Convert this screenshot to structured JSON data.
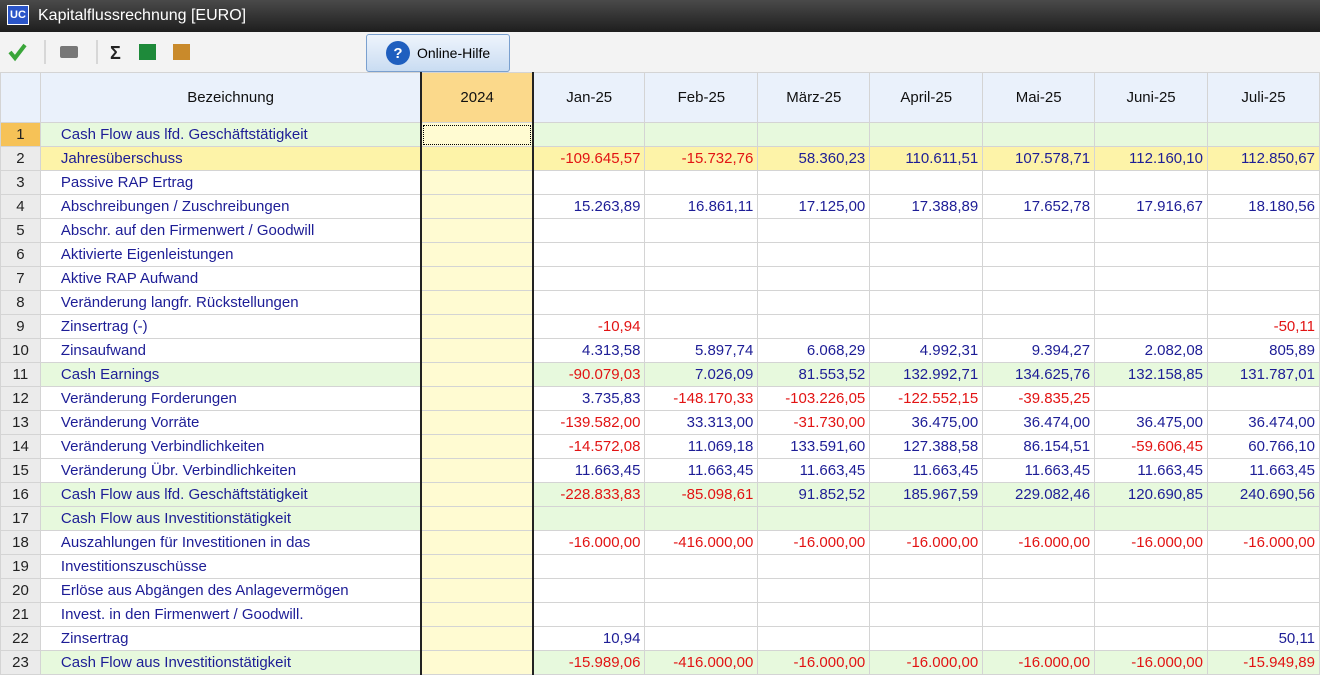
{
  "window": {
    "app_icon": "UC",
    "title": "Kapitalflussrechnung  [EURO]"
  },
  "toolbar": {
    "help_button": "Online-Hilfe"
  },
  "table": {
    "columns": [
      "Bezeichnung",
      "2024",
      "Jan-25",
      "Feb-25",
      "März-25",
      "April-25",
      "Mai-25",
      "Juni-25",
      "Juli-25"
    ],
    "rows": [
      {
        "num": "1",
        "label": "Cash Flow aus lfd. Geschäftstätigkeit",
        "fill": "#e7f9dd",
        "cells": [
          null,
          null,
          null,
          null,
          null,
          null,
          null,
          null
        ]
      },
      {
        "num": "2",
        "label": "Jahresüberschuss",
        "fill": "#fdf3a8",
        "cells": [
          null,
          "-109.645,57",
          "-15.732,76",
          "58.360,23",
          "110.611,51",
          "107.578,71",
          "112.160,10",
          "112.850,67"
        ]
      },
      {
        "num": "3",
        "label": "Passive RAP Ertrag",
        "cells": [
          null,
          null,
          null,
          null,
          null,
          null,
          null,
          null
        ]
      },
      {
        "num": "4",
        "label": "Abschreibungen / Zuschreibungen",
        "cells": [
          null,
          "15.263,89",
          "16.861,11",
          "17.125,00",
          "17.388,89",
          "17.652,78",
          "17.916,67",
          "18.180,56"
        ]
      },
      {
        "num": "5",
        "label": "Abschr. auf den Firmenwert / Goodwill",
        "cells": [
          null,
          null,
          null,
          null,
          null,
          null,
          null,
          null
        ]
      },
      {
        "num": "6",
        "label": "Aktivierte Eigenleistungen",
        "cells": [
          null,
          null,
          null,
          null,
          null,
          null,
          null,
          null
        ]
      },
      {
        "num": "7",
        "label": "Aktive RAP Aufwand",
        "cells": [
          null,
          null,
          null,
          null,
          null,
          null,
          null,
          null
        ]
      },
      {
        "num": "8",
        "label": "Veränderung langfr. Rückstellungen",
        "cells": [
          null,
          null,
          null,
          null,
          null,
          null,
          null,
          null
        ]
      },
      {
        "num": "9",
        "label": "Zinsertrag (-)",
        "cells": [
          null,
          "-10,94",
          null,
          null,
          null,
          null,
          null,
          "-50,11"
        ]
      },
      {
        "num": "10",
        "label": "Zinsaufwand",
        "cells": [
          null,
          "4.313,58",
          "5.897,74",
          "6.068,29",
          "4.992,31",
          "9.394,27",
          "2.082,08",
          "805,89"
        ]
      },
      {
        "num": "11",
        "label": "Cash Earnings",
        "fill": "#e7f9dd",
        "cells": [
          null,
          "-90.079,03",
          "7.026,09",
          "81.553,52",
          "132.992,71",
          "134.625,76",
          "132.158,85",
          "131.787,01"
        ]
      },
      {
        "num": "12",
        "label": "Veränderung Forderungen",
        "cells": [
          null,
          "3.735,83",
          "-148.170,33",
          "-103.226,05",
          "-122.552,15",
          "-39.835,25",
          null,
          null
        ]
      },
      {
        "num": "13",
        "label": "Veränderung Vorräte",
        "cells": [
          null,
          "-139.582,00",
          "33.313,00",
          "-31.730,00",
          "36.475,00",
          "36.474,00",
          "36.475,00",
          "36.474,00"
        ]
      },
      {
        "num": "14",
        "label": "Veränderung Verbindlichkeiten",
        "cells": [
          null,
          "-14.572,08",
          "11.069,18",
          "133.591,60",
          "127.388,58",
          "86.154,51",
          "-59.606,45",
          "60.766,10"
        ]
      },
      {
        "num": "15",
        "label": "Veränderung Übr. Verbindlichkeiten",
        "cells": [
          null,
          "11.663,45",
          "11.663,45",
          "11.663,45",
          "11.663,45",
          "11.663,45",
          "11.663,45",
          "11.663,45"
        ]
      },
      {
        "num": "16",
        "label": "Cash Flow aus lfd. Geschäftstätigkeit",
        "fill": "#e7f9dd",
        "cells": [
          null,
          "-228.833,83",
          "-85.098,61",
          "91.852,52",
          "185.967,59",
          "229.082,46",
          "120.690,85",
          "240.690,56"
        ]
      },
      {
        "num": "17",
        "label": "Cash Flow aus Investitionstätigkeit",
        "fill": "#e7f9dd",
        "cells": [
          null,
          null,
          null,
          null,
          null,
          null,
          null,
          null
        ]
      },
      {
        "num": "18",
        "label": "Auszahlungen für Investitionen in das",
        "cells": [
          null,
          "-16.000,00",
          "-416.000,00",
          "-16.000,00",
          "-16.000,00",
          "-16.000,00",
          "-16.000,00",
          "-16.000,00"
        ]
      },
      {
        "num": "19",
        "label": "Investitionszuschüsse",
        "cells": [
          null,
          null,
          null,
          null,
          null,
          null,
          null,
          null
        ]
      },
      {
        "num": "20",
        "label": "Erlöse aus Abgängen des Anlagevermögen",
        "cells": [
          null,
          null,
          null,
          null,
          null,
          null,
          null,
          null
        ]
      },
      {
        "num": "21",
        "label": "Invest. in den Firmenwert / Goodwill.",
        "cells": [
          null,
          null,
          null,
          null,
          null,
          null,
          null,
          null
        ]
      },
      {
        "num": "22",
        "label": "Zinsertrag",
        "cells": [
          null,
          "10,94",
          null,
          null,
          null,
          null,
          null,
          "50,11"
        ]
      },
      {
        "num": "23",
        "label": "Cash Flow aus Investitionstätigkeit",
        "fill": "#e7f9dd",
        "cells": [
          null,
          "-15.989,06",
          "-416.000,00",
          "-16.000,00",
          "-16.000,00",
          "-16.000,00",
          "-16.000,00",
          "-15.949,89"
        ]
      }
    ]
  }
}
